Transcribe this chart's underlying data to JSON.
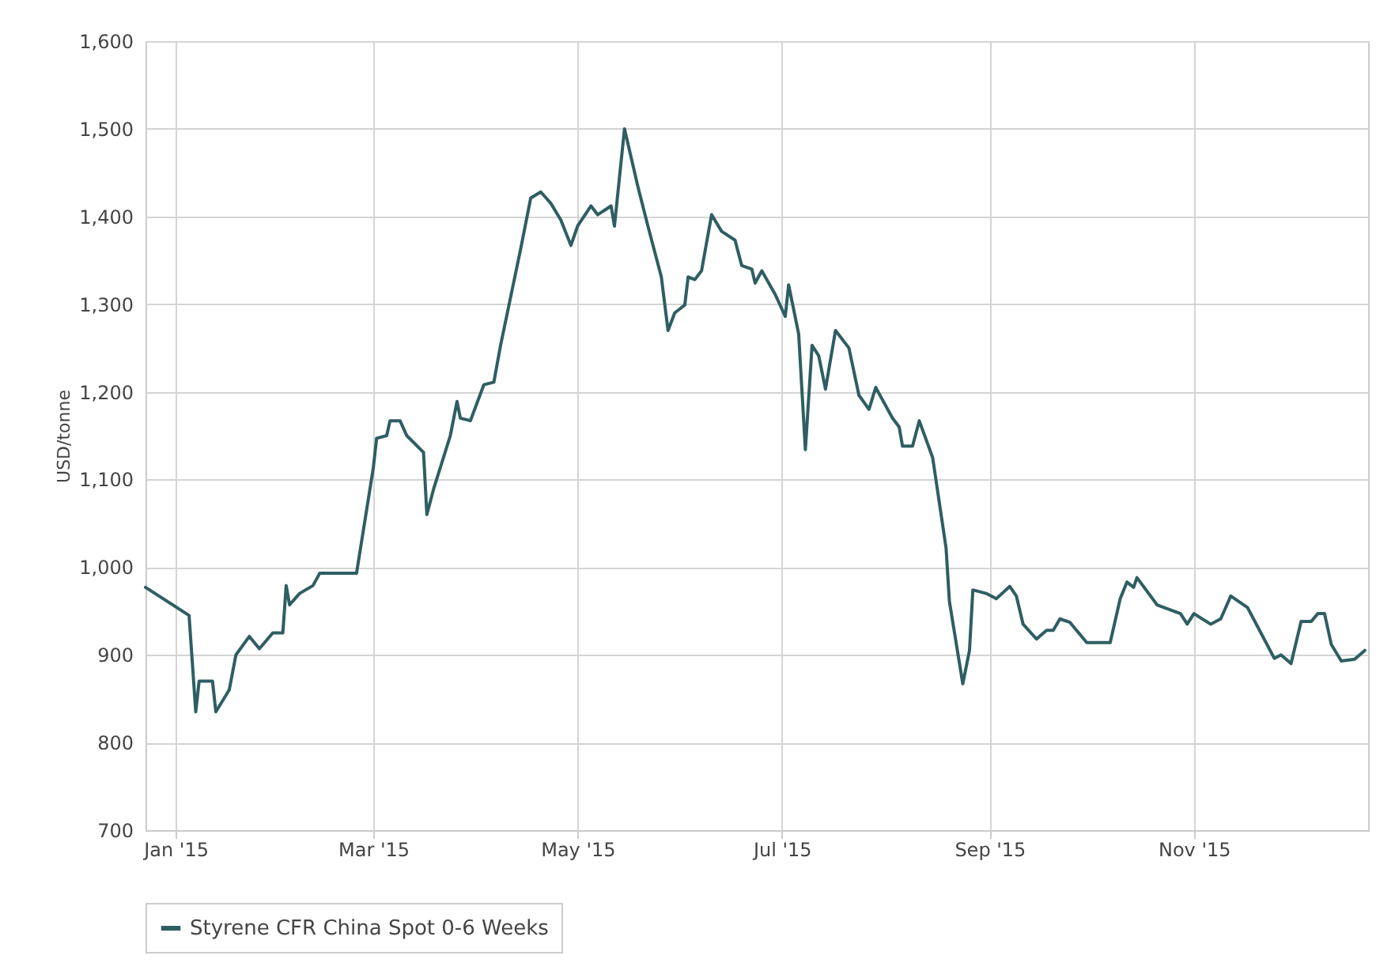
{
  "chart_data": {
    "type": "line",
    "ylabel": "USD/tonne",
    "legend": "bottom",
    "grid": true,
    "line_style": "solid",
    "xlim": [
      "2014-12-23",
      "2015-12-23"
    ],
    "xticks": [
      {
        "value": "2015-01-01",
        "label": "Jan '15"
      },
      {
        "value": "2015-03-01",
        "label": "Mar '15"
      },
      {
        "value": "2015-05-01",
        "label": "May '15"
      },
      {
        "value": "2015-07-01",
        "label": "Jul '15"
      },
      {
        "value": "2015-09-01",
        "label": "Sep '15"
      },
      {
        "value": "2015-11-01",
        "label": "Nov '15"
      }
    ],
    "ylim": [
      700,
      1600
    ],
    "yticks": [
      {
        "value": 700,
        "label": "700"
      },
      {
        "value": 800,
        "label": "800"
      },
      {
        "value": 900,
        "label": "900"
      },
      {
        "value": 1000,
        "label": "1,000"
      },
      {
        "value": 1100,
        "label": "1,100"
      },
      {
        "value": 1200,
        "label": "1,200"
      },
      {
        "value": 1300,
        "label": "1,300"
      },
      {
        "value": 1400,
        "label": "1,400"
      },
      {
        "value": 1500,
        "label": "1,500"
      },
      {
        "value": 1600,
        "label": "1,600"
      }
    ],
    "x": [
      "2014-12-23",
      "2015-01-05",
      "2015-01-07",
      "2015-01-08",
      "2015-01-12",
      "2015-01-13",
      "2015-01-17",
      "2015-01-19",
      "2015-01-23",
      "2015-01-26",
      "2015-01-30",
      "2015-02-02",
      "2015-02-03",
      "2015-02-04",
      "2015-02-07",
      "2015-02-11",
      "2015-02-13",
      "2015-02-24",
      "2015-03-01",
      "2015-03-02",
      "2015-03-05",
      "2015-03-06",
      "2015-03-09",
      "2015-03-11",
      "2015-03-16",
      "2015-03-17",
      "2015-03-19",
      "2015-03-24",
      "2015-03-26",
      "2015-03-27",
      "2015-03-30",
      "2015-04-03",
      "2015-04-06",
      "2015-04-08",
      "2015-04-14",
      "2015-04-17",
      "2015-04-20",
      "2015-04-23",
      "2015-04-26",
      "2015-04-29",
      "2015-05-01",
      "2015-05-05",
      "2015-05-07",
      "2015-05-11",
      "2015-05-12",
      "2015-05-15",
      "2015-05-19",
      "2015-05-22",
      "2015-05-26",
      "2015-05-28",
      "2015-05-30",
      "2015-06-02",
      "2015-06-03",
      "2015-06-05",
      "2015-06-07",
      "2015-06-10",
      "2015-06-13",
      "2015-06-17",
      "2015-06-19",
      "2015-06-22",
      "2015-06-23",
      "2015-06-25",
      "2015-06-29",
      "2015-07-02",
      "2015-07-03",
      "2015-07-06",
      "2015-07-08",
      "2015-07-10",
      "2015-07-12",
      "2015-07-14",
      "2015-07-17",
      "2015-07-21",
      "2015-07-24",
      "2015-07-27",
      "2015-07-29",
      "2015-08-03",
      "2015-08-05",
      "2015-08-06",
      "2015-08-09",
      "2015-08-11",
      "2015-08-15",
      "2015-08-19",
      "2015-08-20",
      "2015-08-24",
      "2015-08-26",
      "2015-08-27",
      "2015-08-31",
      "2015-09-03",
      "2015-09-07",
      "2015-09-09",
      "2015-09-11",
      "2015-09-15",
      "2015-09-18",
      "2015-09-20",
      "2015-09-22",
      "2015-09-25",
      "2015-09-30",
      "2015-10-07",
      "2015-10-10",
      "2015-10-12",
      "2015-10-14",
      "2015-10-15",
      "2015-10-21",
      "2015-10-28",
      "2015-10-30",
      "2015-11-01",
      "2015-11-06",
      "2015-11-09",
      "2015-11-12",
      "2015-11-17",
      "2015-11-21",
      "2015-11-25",
      "2015-11-27",
      "2015-11-30",
      "2015-12-03",
      "2015-12-06",
      "2015-12-08",
      "2015-12-10",
      "2015-12-12",
      "2015-12-15",
      "2015-12-19",
      "2015-12-22"
    ],
    "series": [
      {
        "name": "Styrene CFR China Spot 0-6 Weeks",
        "color": "#2e5e63",
        "values": [
          977,
          945,
          835,
          870,
          870,
          835,
          860,
          900,
          921,
          907,
          925,
          925,
          979,
          957,
          970,
          979,
          993,
          993,
          1113,
          1147,
          1150,
          1167,
          1167,
          1150,
          1131,
          1060,
          1089,
          1150,
          1189,
          1170,
          1167,
          1208,
          1211,
          1253,
          1363,
          1421,
          1428,
          1415,
          1396,
          1367,
          1389,
          1412,
          1402,
          1412,
          1389,
          1500,
          1434,
          1389,
          1331,
          1270,
          1290,
          1299,
          1331,
          1328,
          1338,
          1402,
          1383,
          1373,
          1344,
          1340,
          1324,
          1338,
          1311,
          1286,
          1322,
          1266,
          1134,
          1253,
          1241,
          1203,
          1270,
          1250,
          1196,
          1180,
          1205,
          1170,
          1160,
          1138,
          1138,
          1167,
          1125,
          1022,
          961,
          867,
          905,
          974,
          970,
          964,
          978,
          967,
          935,
          918,
          928,
          928,
          941,
          937,
          914,
          914,
          964,
          983,
          977,
          988,
          957,
          947,
          935,
          947,
          935,
          941,
          967,
          954,
          925,
          896,
          900,
          890,
          938,
          938,
          947,
          947,
          912,
          893,
          895,
          905
        ]
      }
    ]
  }
}
